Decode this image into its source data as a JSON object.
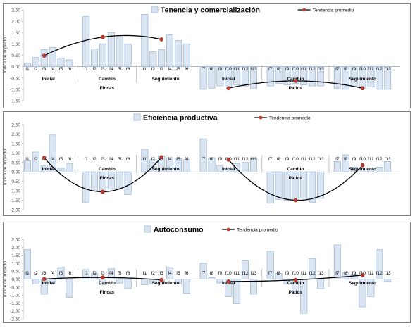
{
  "chart_data": [
    {
      "type": "bar",
      "title": "Tenencia y comercialización",
      "ylabel": "Índice de impacto",
      "ylim": [
        -1.5,
        2.5
      ],
      "yticks": [
        "2.50",
        "2.00",
        "1.50",
        "1.00",
        "0.50",
        "0.00",
        "-0.50",
        "-1.00",
        "-1.50"
      ],
      "legend": {
        "bars": "Tenencia y comercialización",
        "line": "Tendencia promedio",
        "position": "top"
      },
      "groups": [
        {
          "name": "Fincas",
          "subgroups": [
            {
              "name": "Inicial",
              "categories": [
                "f1",
                "f2",
                "f3",
                "f4",
                "f5",
                "f6"
              ],
              "values": [
                0.15,
                0.4,
                0.75,
                0.85,
                0.38,
                0.3
              ]
            },
            {
              "name": "Cambio",
              "categories": [
                "f1",
                "f2",
                "f3",
                "f4",
                "f5",
                "f6"
              ],
              "values": [
                2.2,
                0.78,
                1.0,
                1.5,
                1.3,
                1.0
              ]
            },
            {
              "name": "Seguimiento",
              "categories": [
                "f1",
                "f2",
                "f3",
                "f4",
                "f5",
                "f6"
              ],
              "values": [
                2.3,
                0.65,
                0.75,
                1.4,
                1.15,
                1.0
              ]
            }
          ]
        },
        {
          "name": "Patios",
          "subgroups": [
            {
              "name": "Inicial",
              "categories": [
                "f7",
                "f8",
                "f9",
                "f10",
                "f11",
                "f12",
                "f13"
              ],
              "values": [
                -1.0,
                -0.95,
                -0.85,
                -0.9,
                -0.8,
                -0.85,
                -0.95
              ]
            },
            {
              "name": "Cambio",
              "categories": [
                "f7",
                "f8",
                "f9",
                "f10",
                "f11",
                "f12",
                "f13"
              ],
              "values": [
                -0.85,
                -0.75,
                -0.8,
                -0.75,
                -0.8,
                -0.85,
                -0.85
              ]
            },
            {
              "name": "Seguimiento",
              "categories": [
                "f7",
                "f8",
                "f9",
                "f10",
                "f11",
                "f12",
                "f13"
              ],
              "values": [
                -0.95,
                -1.0,
                -0.9,
                -0.95,
                -0.9,
                -1.0,
                -1.0
              ]
            }
          ]
        }
      ],
      "trend": [
        {
          "group": "Fincas",
          "values": [
            0.48,
            1.3,
            1.2
          ]
        },
        {
          "group": "Patios",
          "values": [
            -0.95,
            -0.63,
            -0.95
          ]
        }
      ],
      "colors": {
        "bar_fill": "#dbe5f1",
        "bar_stroke": "#95b3d7",
        "trend_line": "#000000",
        "trend_marker": "#c0392b"
      }
    },
    {
      "type": "bar",
      "title": "Eficiencia productiva",
      "ylabel": "Índice de impacto",
      "ylim": [
        -2.0,
        2.5
      ],
      "yticks": [
        "2.50",
        "2.00",
        "1.50",
        "1.00",
        "0.50",
        "0.00",
        "-0.50",
        "-1.00",
        "-1.50",
        "-2.00"
      ],
      "legend": {
        "bars": "Eficiencia productiva",
        "line": "Tendencia promedio",
        "position": "top"
      },
      "groups": [
        {
          "name": "Fincas",
          "subgroups": [
            {
              "name": "Inicial",
              "categories": [
                "f1",
                "f2",
                "f3",
                "f4",
                "f5",
                "f6"
              ],
              "values": [
                0.6,
                1.05,
                0.35,
                1.95,
                0.2,
                0.45
              ]
            },
            {
              "name": "Cambio",
              "categories": [
                "f1",
                "f2",
                "f3",
                "f4",
                "f5",
                "f6"
              ],
              "values": [
                -1.6,
                -1.0,
                -1.0,
                -0.9,
                -0.9,
                -1.2
              ]
            },
            {
              "name": "Seguimiento",
              "categories": [
                "f1",
                "f2",
                "f3",
                "f4",
                "f5",
                "f6"
              ],
              "values": [
                1.2,
                0.65,
                0.85,
                0.75,
                0.7,
                0.65
              ]
            }
          ]
        },
        {
          "name": "Patios",
          "subgroups": [
            {
              "name": "Inicial",
              "categories": [
                "f7",
                "f8",
                "f9",
                "f10",
                "f11",
                "f12",
                "f13"
              ],
              "values": [
                1.75,
                0.75,
                0.35,
                0.2,
                0.45,
                0.5,
                0.7
              ]
            },
            {
              "name": "Cambio",
              "categories": [
                "f7",
                "f8",
                "f9",
                "f10",
                "f11",
                "f12",
                "f13"
              ],
              "values": [
                -1.65,
                -1.45,
                -1.5,
                -1.5,
                -1.4,
                -1.6,
                -1.4
              ]
            },
            {
              "name": "Seguimiento",
              "categories": [
                "f7",
                "f8",
                "f9",
                "f10",
                "f11",
                "f12",
                "f13"
              ],
              "values": [
                0.55,
                0.9,
                0.25,
                0.1,
                0.1,
                0.25,
                0.55
              ]
            }
          ]
        }
      ],
      "trend": [
        {
          "group": "Fincas",
          "values": [
            0.75,
            -1.05,
            0.78
          ]
        },
        {
          "group": "Patios",
          "values": [
            0.65,
            -1.5,
            0.35
          ]
        }
      ],
      "colors": {
        "bar_fill": "#dbe5f1",
        "bar_stroke": "#95b3d7",
        "trend_line": "#000000",
        "trend_marker": "#c0392b"
      }
    },
    {
      "type": "bar",
      "title": "Autoconsumo",
      "ylabel": "Índice de impacto",
      "ylim": [
        -2.5,
        2.5
      ],
      "yticks": [
        "2.50",
        "2.00",
        "1.50",
        "1.00",
        "0.50",
        "0.00",
        "-0.50",
        "-1.00",
        "-1.50",
        "-2.00",
        "-2.50"
      ],
      "legend": {
        "bars": "Autoconsumo",
        "line": "Tendencia promedio",
        "position": "top"
      },
      "groups": [
        {
          "name": "Fincas",
          "subgroups": [
            {
              "name": "Inicial",
              "categories": [
                "f1",
                "f2",
                "f3",
                "f4",
                "f5",
                "f6"
              ],
              "values": [
                1.85,
                -0.3,
                -0.95,
                -0.3,
                0.75,
                -1.15
              ]
            },
            {
              "name": "Cambio",
              "categories": [
                "f1",
                "f2",
                "f3",
                "f4",
                "f5",
                "f6"
              ],
              "values": [
                0.6,
                0.35,
                -0.35,
                0.65,
                -0.25,
                -0.6
              ]
            },
            {
              "name": "Seguimiento",
              "categories": [
                "f1",
                "f2",
                "f3",
                "f4",
                "f5",
                "f6"
              ],
              "values": [
                -0.35,
                -0.3,
                -0.2,
                0.75,
                -0.3,
                -0.9
              ]
            }
          ]
        },
        {
          "name": "Patios",
          "subgroups": [
            {
              "name": "Inicial",
              "categories": [
                "f7",
                "f8",
                "f9",
                "f10",
                "f11",
                "f12",
                "f13"
              ],
              "values": [
                1.0,
                0.1,
                -0.25,
                -1.1,
                -1.55,
                1.15,
                -0.95
              ]
            },
            {
              "name": "Cambio",
              "categories": [
                "f7",
                "f8",
                "f9",
                "f10",
                "f11",
                "f12",
                "f13"
              ],
              "values": [
                1.75,
                0.35,
                -0.3,
                -0.9,
                -2.15,
                1.3,
                -0.6
              ]
            },
            {
              "name": "Seguimiento",
              "categories": [
                "f7",
                "f8",
                "f9",
                "f10",
                "f11",
                "f12",
                "f13"
              ],
              "values": [
                2.15,
                0.4,
                0.3,
                -1.75,
                -1.1,
                1.85,
                -0.15
              ]
            }
          ]
        }
      ],
      "trend": [
        {
          "group": "Fincas",
          "values": [
            0.0,
            0.1,
            -0.05
          ]
        },
        {
          "group": "Patios",
          "values": [
            -0.15,
            -0.05,
            0.25
          ]
        }
      ],
      "colors": {
        "bar_fill": "#dbe5f1",
        "bar_stroke": "#95b3d7",
        "trend_line": "#000000",
        "trend_marker": "#c0392b"
      }
    }
  ]
}
